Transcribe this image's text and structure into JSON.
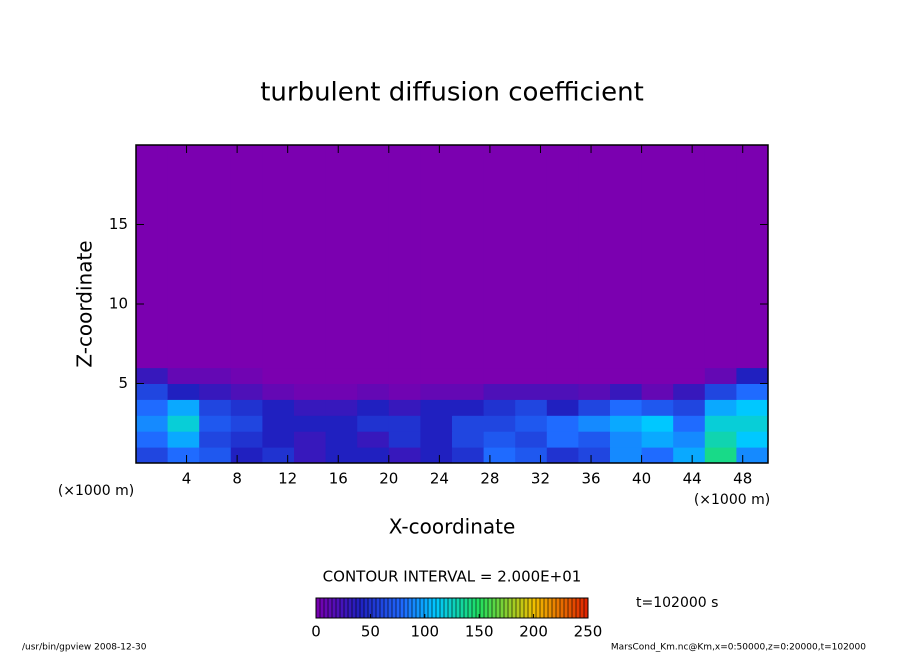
{
  "chart_data": {
    "type": "heatmap",
    "title": "turbulent diffusion coefficient",
    "x_label": "X-coordinate",
    "y_label": "Z-coordinate",
    "x_unit": "(×1000 m)",
    "y_unit": "(×1000 m)",
    "xlim": [
      0,
      50
    ],
    "ylim": [
      0,
      20
    ],
    "xticks": [
      4,
      8,
      12,
      16,
      20,
      24,
      28,
      32,
      36,
      40,
      44,
      48
    ],
    "yticks": [
      5,
      10,
      15
    ],
    "x_edges": [
      0,
      2.5,
      5,
      7.5,
      10,
      12.5,
      15,
      17.5,
      20,
      22.5,
      25,
      27.5,
      30,
      32.5,
      35,
      37.5,
      40,
      42.5,
      45,
      47.5,
      50
    ],
    "y_edges": [
      0,
      1,
      2,
      3,
      4,
      5,
      6,
      20
    ],
    "values": [
      [
        60,
        80,
        70,
        40,
        50,
        30,
        40,
        40,
        30,
        40,
        50,
        80,
        70,
        50,
        60,
        90,
        80,
        100,
        140,
        90
      ],
      [
        80,
        100,
        60,
        50,
        40,
        30,
        40,
        30,
        50,
        40,
        60,
        70,
        60,
        80,
        70,
        90,
        100,
        90,
        130,
        110
      ],
      [
        90,
        120,
        70,
        60,
        40,
        40,
        40,
        50,
        50,
        40,
        60,
        60,
        70,
        80,
        90,
        100,
        110,
        80,
        120,
        120
      ],
      [
        80,
        100,
        60,
        50,
        40,
        30,
        30,
        40,
        30,
        40,
        40,
        50,
        60,
        40,
        60,
        80,
        70,
        60,
        100,
        110
      ],
      [
        60,
        40,
        30,
        20,
        10,
        5,
        5,
        10,
        5,
        10,
        10,
        20,
        20,
        20,
        15,
        30,
        10,
        30,
        60,
        80
      ],
      [
        30,
        10,
        10,
        5,
        0,
        0,
        0,
        0,
        0,
        0,
        0,
        0,
        0,
        0,
        0,
        0,
        0,
        0,
        10,
        40
      ],
      [
        0,
        0,
        0,
        0,
        0,
        0,
        0,
        0,
        0,
        0,
        0,
        0,
        0,
        0,
        0,
        0,
        0,
        0,
        0,
        0
      ]
    ],
    "colorbar": {
      "lim": [
        0,
        250
      ],
      "ticks": [
        0,
        50,
        100,
        150,
        200,
        250
      ],
      "stops": [
        [
          0,
          "#7b00b0"
        ],
        [
          40,
          "#2020c0"
        ],
        [
          80,
          "#1f6bff"
        ],
        [
          110,
          "#00c8ff"
        ],
        [
          150,
          "#20e060"
        ],
        [
          200,
          "#f0c000"
        ],
        [
          250,
          "#e02000"
        ]
      ]
    },
    "contour_interval": "CONTOUR INTERVAL = 2.000E+01",
    "time_label": "t=102000 s",
    "footer_left": "/usr/bin/gpview   2008-12-30",
    "footer_right": "MarsCond_Km.nc@Km,x=0:50000,z=0:20000,t=102000"
  }
}
